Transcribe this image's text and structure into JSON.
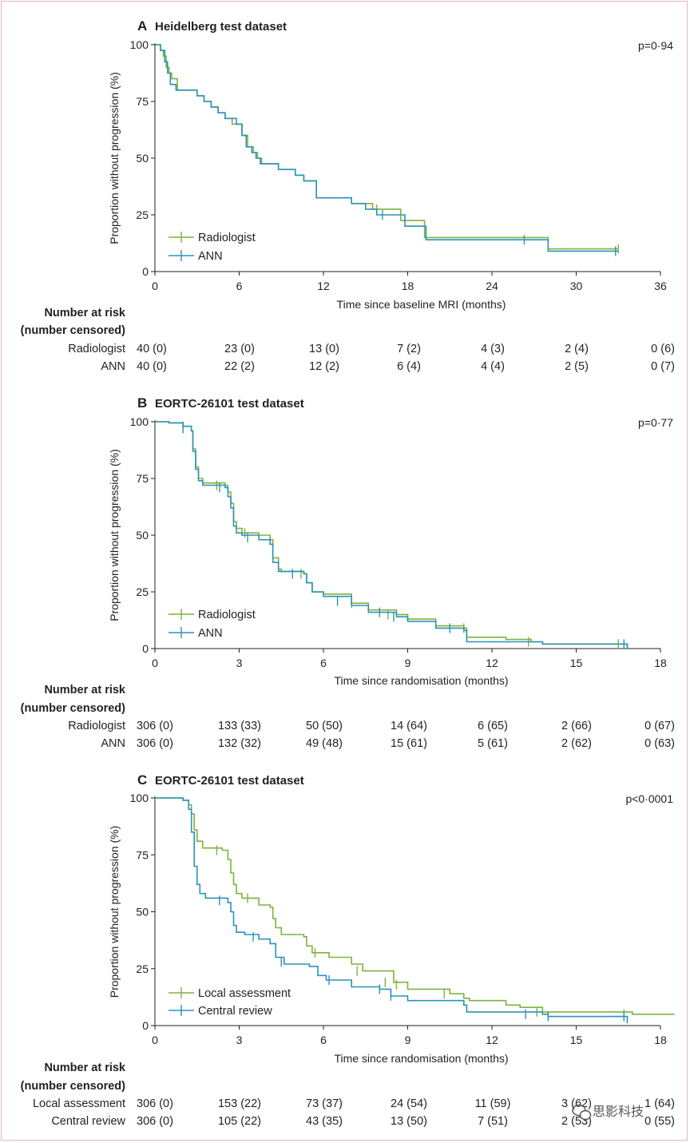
{
  "colors": {
    "green": "#7fb23e",
    "blue": "#2a94b8",
    "axis": "#231f20"
  },
  "watermark": {
    "text": "思影科技",
    "icon": "wechat-icon"
  },
  "chart_data": [
    {
      "letter": "A",
      "type": "line",
      "title": "Heidelberg test dataset",
      "pvalue": "p=0·94",
      "xlabel": "Time since baseline MRI (months)",
      "ylabel": "Proportion without progression (%)",
      "xlim": [
        0,
        36
      ],
      "ylim": [
        0,
        100
      ],
      "xticks": [
        "0",
        "6",
        "12",
        "18",
        "24",
        "30",
        "36"
      ],
      "yticks": [
        "0",
        "25",
        "50",
        "75",
        "100"
      ],
      "legend_position": "bottom-left",
      "series": [
        {
          "name": "Radiologist",
          "color": "green",
          "steps": [
            [
              0,
              100
            ],
            [
              0.4,
              97.5
            ],
            [
              0.6,
              95
            ],
            [
              0.8,
              90
            ],
            [
              1,
              87.5
            ],
            [
              1.2,
              85
            ],
            [
              1.6,
              80
            ],
            [
              3,
              77.5
            ],
            [
              3.5,
              75
            ],
            [
              4,
              72.5
            ],
            [
              4.5,
              70
            ],
            [
              5,
              67.5
            ],
            [
              5.5,
              65
            ],
            [
              6.2,
              60
            ],
            [
              6.6,
              55
            ],
            [
              7,
              52.5
            ],
            [
              7.3,
              50
            ],
            [
              7.6,
              47.5
            ],
            [
              8.8,
              45
            ],
            [
              10,
              42.5
            ],
            [
              10.6,
              40
            ],
            [
              11.5,
              32.5
            ],
            [
              14,
              30
            ],
            [
              15.5,
              27.5
            ],
            [
              17.5,
              22.5
            ],
            [
              19.2,
              15
            ],
            [
              28,
              10
            ],
            [
              33,
              10
            ]
          ],
          "censors": [
            [
              15.8,
              27.5
            ],
            [
              33,
              10
            ]
          ]
        },
        {
          "name": "ANN",
          "color": "blue",
          "steps": [
            [
              0,
              100
            ],
            [
              0.4,
              97.5
            ],
            [
              0.7,
              92.5
            ],
            [
              0.9,
              87.5
            ],
            [
              1.1,
              82.5
            ],
            [
              1.5,
              80
            ],
            [
              3,
              77.5
            ],
            [
              3.5,
              75
            ],
            [
              4,
              72.5
            ],
            [
              4.5,
              70
            ],
            [
              5,
              67.5
            ],
            [
              5.8,
              65
            ],
            [
              6.2,
              60
            ],
            [
              6.5,
              55
            ],
            [
              6.9,
              52.5
            ],
            [
              7.2,
              50
            ],
            [
              7.5,
              47.5
            ],
            [
              8.8,
              45
            ],
            [
              10,
              42.5
            ],
            [
              10.6,
              40
            ],
            [
              11.5,
              32.5
            ],
            [
              14,
              30
            ],
            [
              15,
              27.5
            ],
            [
              15.8,
              25
            ],
            [
              17.8,
              20
            ],
            [
              19.3,
              14
            ],
            [
              28,
              9
            ],
            [
              33,
              9
            ]
          ],
          "censors": [
            [
              16.2,
              25
            ],
            [
              26.3,
              14
            ],
            [
              32.8,
              9
            ]
          ]
        }
      ],
      "risk_table": {
        "head": [
          "Number at risk",
          "(number censored)"
        ],
        "rows": [
          {
            "label": "Radiologist",
            "values": [
              "40 (0)",
              "23 (0)",
              "13 (0)",
              "7 (2)",
              "4 (3)",
              "2 (4)",
              "0 (6)"
            ]
          },
          {
            "label": "ANN",
            "values": [
              "40 (0)",
              "22 (2)",
              "12 (2)",
              "6 (4)",
              "4 (4)",
              "2 (5)",
              "0 (7)"
            ]
          }
        ]
      }
    },
    {
      "letter": "B",
      "type": "line",
      "title": "EORTC-26101 test dataset",
      "pvalue": "p=0·77",
      "xlabel": "Time since randomisation (months)",
      "ylabel": "Proportion without progression (%)",
      "xlim": [
        0,
        18
      ],
      "ylim": [
        0,
        100
      ],
      "xticks": [
        "0",
        "3",
        "6",
        "9",
        "12",
        "15",
        "18"
      ],
      "yticks": [
        "0",
        "25",
        "50",
        "75",
        "100"
      ],
      "legend_position": "bottom-left",
      "series": [
        {
          "name": "Radiologist",
          "color": "green",
          "steps": [
            [
              0,
              100
            ],
            [
              0.5,
              99.5
            ],
            [
              1,
              98
            ],
            [
              1.3,
              96
            ],
            [
              1.35,
              88
            ],
            [
              1.45,
              80
            ],
            [
              1.55,
              75
            ],
            [
              1.7,
              73
            ],
            [
              2.5,
              72
            ],
            [
              2.6,
              69
            ],
            [
              2.7,
              64
            ],
            [
              2.8,
              56
            ],
            [
              2.9,
              53
            ],
            [
              3.1,
              51
            ],
            [
              3.7,
              50
            ],
            [
              4.1,
              48
            ],
            [
              4.2,
              40
            ],
            [
              4.4,
              35
            ],
            [
              4.5,
              34
            ],
            [
              5.3,
              33
            ],
            [
              5.4,
              29
            ],
            [
              5.6,
              25
            ],
            [
              6,
              24
            ],
            [
              7,
              20
            ],
            [
              7.6,
              17
            ],
            [
              8.6,
              15
            ],
            [
              9,
              13
            ],
            [
              10,
              10
            ],
            [
              11,
              9
            ],
            [
              11.1,
              5
            ],
            [
              12.5,
              4
            ],
            [
              13.4,
              3
            ],
            [
              13.8,
              2
            ],
            [
              16.8,
              2
            ],
            [
              16.82,
              0
            ]
          ],
          "censors": [
            [
              1,
              98
            ],
            [
              2.2,
              72
            ],
            [
              3.2,
              51
            ],
            [
              5.2,
              33
            ],
            [
              7,
              20
            ],
            [
              8.3,
              15
            ],
            [
              11,
              9
            ],
            [
              13.3,
              3
            ],
            [
              16.5,
              2
            ]
          ]
        },
        {
          "name": "ANN",
          "color": "blue",
          "steps": [
            [
              0,
              100
            ],
            [
              0.5,
              99.5
            ],
            [
              1,
              98
            ],
            [
              1.3,
              96
            ],
            [
              1.35,
              87
            ],
            [
              1.45,
              79
            ],
            [
              1.55,
              74
            ],
            [
              1.7,
              72
            ],
            [
              2.5,
              71
            ],
            [
              2.6,
              67
            ],
            [
              2.7,
              62
            ],
            [
              2.8,
              54
            ],
            [
              2.9,
              51
            ],
            [
              3.1,
              50
            ],
            [
              3.7,
              48
            ],
            [
              4.1,
              46
            ],
            [
              4.2,
              38
            ],
            [
              4.4,
              34
            ],
            [
              5.3,
              33
            ],
            [
              5.4,
              29
            ],
            [
              5.6,
              25
            ],
            [
              6,
              23
            ],
            [
              7,
              19
            ],
            [
              7.6,
              16
            ],
            [
              8.6,
              14
            ],
            [
              9,
              12
            ],
            [
              10,
              9
            ],
            [
              11,
              8
            ],
            [
              11.1,
              3
            ],
            [
              12.5,
              3
            ],
            [
              13.8,
              2
            ],
            [
              16.8,
              2
            ],
            [
              16.82,
              0
            ]
          ],
          "censors": [
            [
              1,
              97
            ],
            [
              2.3,
              71
            ],
            [
              3.3,
              49
            ],
            [
              4.9,
              33
            ],
            [
              6.5,
              21
            ],
            [
              8,
              16
            ],
            [
              8.5,
              14
            ],
            [
              10.5,
              9
            ],
            [
              16.7,
              2
            ]
          ]
        }
      ],
      "risk_table": {
        "head": [
          "Number at risk",
          "(number censored)"
        ],
        "rows": [
          {
            "label": "Radiologist",
            "values": [
              "306 (0)",
              "133 (33)",
              "50 (50)",
              "14 (64)",
              "6 (65)",
              "2 (66)",
              "0 (67)"
            ]
          },
          {
            "label": "ANN",
            "values": [
              "306 (0)",
              "132 (32)",
              "49 (48)",
              "15 (61)",
              "5 (61)",
              "2 (62)",
              "0 (63)"
            ]
          }
        ]
      }
    },
    {
      "letter": "C",
      "type": "line",
      "title": "EORTC-26101 test dataset",
      "pvalue": "p<0·0001",
      "xlabel": "Time since randomisation (months)",
      "ylabel": "Proportion without progression (%)",
      "xlim": [
        0,
        18
      ],
      "ylim": [
        0,
        100
      ],
      "xticks": [
        "0",
        "3",
        "6",
        "9",
        "12",
        "15",
        "18"
      ],
      "yticks": [
        "0",
        "25",
        "50",
        "75",
        "100"
      ],
      "legend_position": "bottom-left",
      "series": [
        {
          "name": "Local assessment",
          "color": "green",
          "steps": [
            [
              0,
              100
            ],
            [
              0.8,
              100
            ],
            [
              1,
              99
            ],
            [
              1.2,
              97
            ],
            [
              1.3,
              93
            ],
            [
              1.4,
              86
            ],
            [
              1.5,
              81
            ],
            [
              1.7,
              78
            ],
            [
              2.4,
              77
            ],
            [
              2.6,
              73
            ],
            [
              2.7,
              67
            ],
            [
              2.8,
              62
            ],
            [
              2.9,
              58
            ],
            [
              3.1,
              56
            ],
            [
              3.7,
              53
            ],
            [
              4.1,
              52
            ],
            [
              4.2,
              47
            ],
            [
              4.3,
              43
            ],
            [
              4.5,
              40
            ],
            [
              5.3,
              39
            ],
            [
              5.4,
              35
            ],
            [
              5.6,
              32
            ],
            [
              6.2,
              30
            ],
            [
              7,
              27
            ],
            [
              7.4,
              24
            ],
            [
              8.5,
              19
            ],
            [
              9,
              16
            ],
            [
              10.5,
              14
            ],
            [
              11,
              12
            ],
            [
              11.2,
              11
            ],
            [
              12.5,
              9
            ],
            [
              13,
              8
            ],
            [
              13.8,
              6
            ],
            [
              17,
              5
            ],
            [
              18.5,
              5
            ]
          ],
          "censors": [
            [
              2.2,
              77
            ],
            [
              3.3,
              56
            ],
            [
              5.7,
              32
            ],
            [
              7.2,
              24
            ],
            [
              8.2,
              19
            ],
            [
              8.6,
              18
            ],
            [
              10.3,
              14
            ],
            [
              13.6,
              6
            ],
            [
              16.7,
              5
            ]
          ]
        },
        {
          "name": "Central review",
          "color": "blue",
          "steps": [
            [
              0,
              100
            ],
            [
              1,
              99
            ],
            [
              1.2,
              95
            ],
            [
              1.3,
              85
            ],
            [
              1.4,
              70
            ],
            [
              1.5,
              62
            ],
            [
              1.6,
              58
            ],
            [
              1.8,
              56
            ],
            [
              2.6,
              54
            ],
            [
              2.7,
              50
            ],
            [
              2.8,
              44
            ],
            [
              2.9,
              41
            ],
            [
              3.2,
              40
            ],
            [
              3.7,
              38
            ],
            [
              4.1,
              36
            ],
            [
              4.3,
              30
            ],
            [
              4.6,
              27
            ],
            [
              5.5,
              26
            ],
            [
              5.8,
              22
            ],
            [
              6.1,
              20
            ],
            [
              7,
              17
            ],
            [
              8,
              16
            ],
            [
              8.4,
              13
            ],
            [
              9,
              11
            ],
            [
              11,
              9
            ],
            [
              11.1,
              6
            ],
            [
              13.8,
              5
            ],
            [
              14,
              4
            ],
            [
              16.8,
              4
            ],
            [
              16.82,
              1
            ]
          ],
          "censors": [
            [
              2.3,
              55
            ],
            [
              3.5,
              39
            ],
            [
              4.5,
              28
            ],
            [
              6.2,
              20
            ],
            [
              8,
              16
            ],
            [
              8.4,
              13
            ],
            [
              13.2,
              5
            ],
            [
              14,
              4
            ],
            [
              16.7,
              4
            ]
          ]
        }
      ],
      "risk_table": {
        "head": [
          "Number at risk",
          "(number censored)"
        ],
        "rows": [
          {
            "label": "Local assessment",
            "values": [
              "306 (0)",
              "153 (22)",
              "73 (37)",
              "24 (54)",
              "11 (59)",
              "3 (62)",
              "1 (64)"
            ]
          },
          {
            "label": "Central review",
            "values": [
              "306 (0)",
              "105 (22)",
              "43 (35)",
              "13 (50)",
              "7 (51)",
              "2 (53)",
              "0 (55)"
            ]
          }
        ]
      }
    }
  ]
}
